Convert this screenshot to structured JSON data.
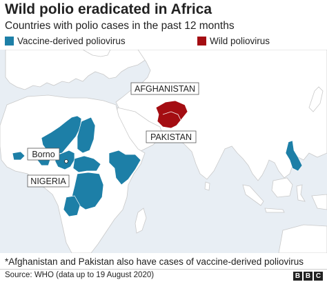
{
  "title": "Wild polio eradicated in Africa",
  "subtitle": "Countries with polio cases in the past 12 months",
  "legend": [
    {
      "label": "Vaccine-derived poliovirus",
      "color": "#1d7fa7"
    },
    {
      "label": "Wild poliovirus",
      "color": "#a40d12"
    }
  ],
  "map": {
    "labels": {
      "afghanistan": "AFGHANISTAN",
      "pakistan": "PAKISTAN",
      "borno": "Borno",
      "nigeria": "NIGERIA"
    },
    "colors": {
      "sea": "#e8eef4",
      "land": "#ffffff",
      "border": "#c9c9c9",
      "vaccine": "#1d7fa7",
      "wild": "#a40d12"
    }
  },
  "footnote": "*Afghanistan and Pakistan also have cases of vaccine-derived poliovirus",
  "source": "Source: WHO (data up to 19 August 2020)",
  "logo": [
    "B",
    "B",
    "C"
  ]
}
